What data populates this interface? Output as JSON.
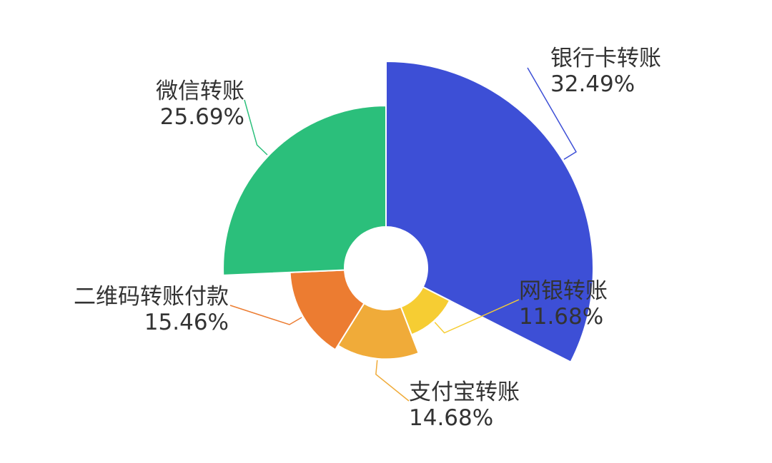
{
  "chart_data": {
    "type": "pie",
    "variant": "rose",
    "slices": [
      {
        "label": "银行卡转账",
        "value": 32.49,
        "display": "32.49%",
        "color": "#3d4fd6"
      },
      {
        "label": "网银转账",
        "value": 11.68,
        "display": "11.68%",
        "color": "#f6cd33"
      },
      {
        "label": "支付宝转账",
        "value": 14.68,
        "display": "14.68%",
        "color": "#f0ab39"
      },
      {
        "label": "二维码转账付款",
        "value": 15.46,
        "display": "15.46%",
        "color": "#ec7c31"
      },
      {
        "label": "微信转账",
        "value": 25.69,
        "display": "25.69%",
        "color": "#2bbf7b"
      }
    ],
    "legend": "none",
    "grid": false
  }
}
